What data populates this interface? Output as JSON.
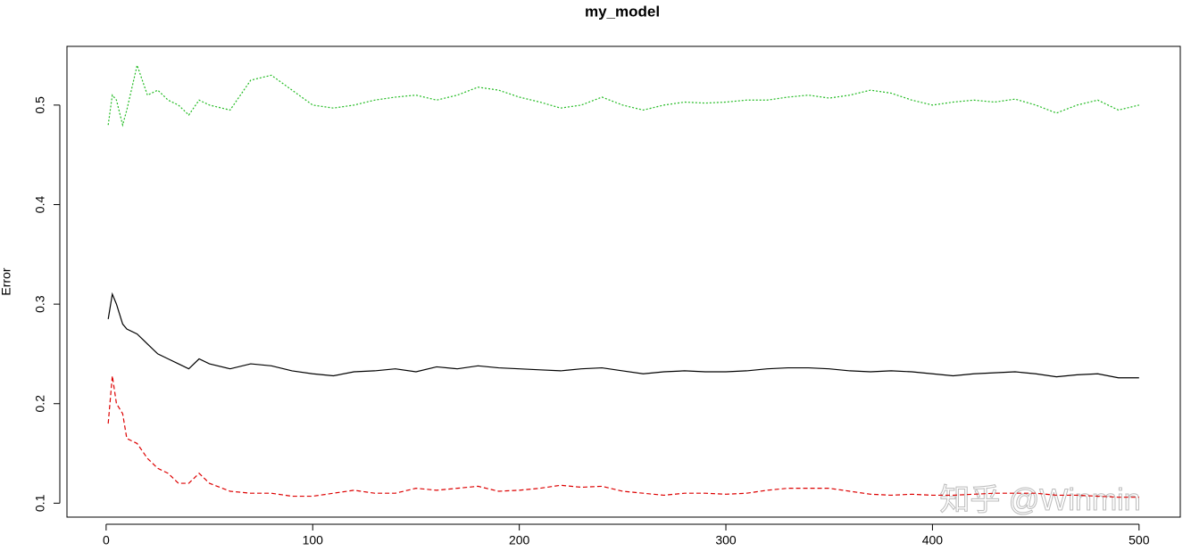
{
  "chart_data": {
    "type": "line",
    "title": "my_model",
    "y_label": "Error",
    "watermark": "知乎 @Winmin",
    "x": [
      1,
      3,
      5,
      8,
      10,
      15,
      20,
      25,
      30,
      35,
      40,
      45,
      50,
      60,
      70,
      80,
      90,
      100,
      110,
      120,
      130,
      140,
      150,
      160,
      170,
      180,
      190,
      200,
      210,
      220,
      230,
      240,
      250,
      260,
      270,
      280,
      290,
      300,
      310,
      320,
      330,
      340,
      350,
      360,
      370,
      380,
      390,
      400,
      410,
      420,
      430,
      440,
      450,
      460,
      470,
      480,
      490,
      500
    ],
    "series": [
      {
        "color": "#000000",
        "linetype": "solid",
        "values": [
          0.285,
          0.31,
          0.3,
          0.28,
          0.275,
          0.27,
          0.26,
          0.25,
          0.245,
          0.24,
          0.235,
          0.245,
          0.24,
          0.235,
          0.24,
          0.238,
          0.233,
          0.23,
          0.228,
          0.232,
          0.233,
          0.235,
          0.232,
          0.237,
          0.235,
          0.238,
          0.236,
          0.235,
          0.234,
          0.233,
          0.235,
          0.236,
          0.233,
          0.23,
          0.232,
          0.233,
          0.232,
          0.232,
          0.233,
          0.235,
          0.236,
          0.236,
          0.235,
          0.233,
          0.232,
          0.233,
          0.232,
          0.23,
          0.228,
          0.23,
          0.231,
          0.232,
          0.23,
          0.227,
          0.229,
          0.23,
          0.226,
          0.226
        ]
      },
      {
        "color": "#dd0000",
        "linetype": "dashed",
        "values": [
          0.18,
          0.228,
          0.2,
          0.19,
          0.165,
          0.16,
          0.145,
          0.135,
          0.13,
          0.12,
          0.12,
          0.13,
          0.12,
          0.112,
          0.11,
          0.11,
          0.107,
          0.107,
          0.11,
          0.113,
          0.11,
          0.11,
          0.115,
          0.113,
          0.115,
          0.117,
          0.112,
          0.113,
          0.115,
          0.118,
          0.116,
          0.117,
          0.112,
          0.11,
          0.108,
          0.11,
          0.11,
          0.109,
          0.11,
          0.113,
          0.115,
          0.115,
          0.115,
          0.112,
          0.109,
          0.108,
          0.109,
          0.108,
          0.108,
          0.109,
          0.11,
          0.11,
          0.11,
          0.108,
          0.108,
          0.107,
          0.106,
          0.106
        ]
      },
      {
        "color": "#22bb22",
        "linetype": "dotted",
        "values": [
          0.48,
          0.51,
          0.505,
          0.48,
          0.495,
          0.54,
          0.51,
          0.515,
          0.505,
          0.5,
          0.49,
          0.505,
          0.5,
          0.495,
          0.525,
          0.53,
          0.515,
          0.5,
          0.497,
          0.5,
          0.505,
          0.508,
          0.51,
          0.505,
          0.51,
          0.518,
          0.515,
          0.508,
          0.503,
          0.497,
          0.5,
          0.508,
          0.5,
          0.495,
          0.5,
          0.503,
          0.502,
          0.503,
          0.505,
          0.505,
          0.508,
          0.51,
          0.507,
          0.51,
          0.515,
          0.512,
          0.505,
          0.5,
          0.503,
          0.505,
          0.503,
          0.506,
          0.5,
          0.492,
          0.5,
          0.505,
          0.495,
          0.5
        ]
      }
    ],
    "xlim": [
      -18.96,
      519.96
    ],
    "xticks": [
      0,
      100,
      200,
      300,
      400,
      500
    ],
    "ylim": [
      0.086,
      0.559
    ],
    "yticks": [
      0.1,
      0.2,
      0.3,
      0.4,
      0.5
    ]
  }
}
